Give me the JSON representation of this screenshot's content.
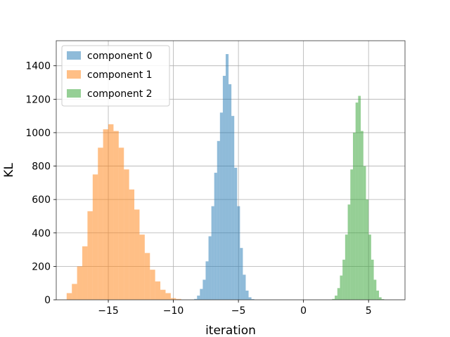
{
  "chart_data": {
    "type": "bar",
    "histogram": true,
    "xlabel": "iteration",
    "ylabel": "KL",
    "xlim": [
      -19,
      7.8
    ],
    "ylim": [
      0,
      1550
    ],
    "xticks": [
      -15,
      -10,
      -5,
      0,
      5
    ],
    "xtick_labels": [
      "−15",
      "−10",
      "−5",
      "0",
      "5"
    ],
    "yticks": [
      0,
      200,
      400,
      600,
      800,
      1000,
      1200,
      1400
    ],
    "ytick_labels": [
      "0",
      "200",
      "400",
      "600",
      "800",
      "1000",
      "1200",
      "1400"
    ],
    "grid": true,
    "legend_position": "top-left",
    "series": [
      {
        "name": "component 0",
        "color": "#1f77b4",
        "alpha": 0.5,
        "bin_width": 0.22,
        "bin_start": -8.4,
        "values": [
          5,
          25,
          65,
          120,
          230,
          380,
          560,
          760,
          950,
          1120,
          1340,
          1470,
          1290,
          1100,
          790,
          560,
          310,
          150,
          55,
          15,
          4
        ]
      },
      {
        "name": "component 1",
        "color": "#ff7f0e",
        "alpha": 0.5,
        "bin_width": 0.4,
        "bin_start": -18.2,
        "values": [
          40,
          95,
          200,
          320,
          530,
          750,
          910,
          1020,
          1050,
          1010,
          910,
          780,
          660,
          540,
          390,
          280,
          180,
          110,
          60,
          40,
          10,
          5
        ]
      },
      {
        "name": "component 2",
        "color": "#2ca02c",
        "alpha": 0.5,
        "bin_width": 0.2,
        "bin_start": 2.2,
        "values": [
          5,
          25,
          70,
          145,
          240,
          390,
          570,
          780,
          1000,
          1180,
          1220,
          1010,
          800,
          600,
          390,
          240,
          120,
          55,
          15,
          4
        ]
      }
    ]
  }
}
